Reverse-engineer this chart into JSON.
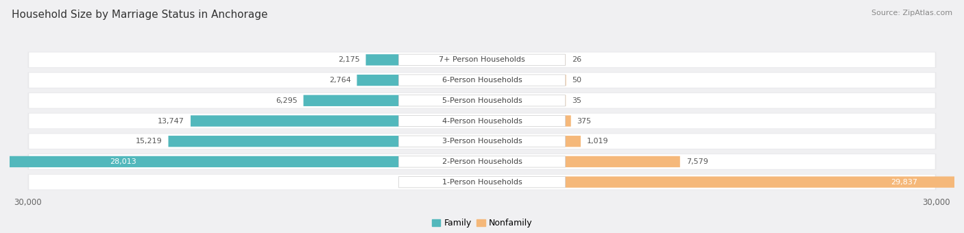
{
  "title": "Household Size by Marriage Status in Anchorage",
  "source": "Source: ZipAtlas.com",
  "categories": [
    "7+ Person Households",
    "6-Person Households",
    "5-Person Households",
    "4-Person Households",
    "3-Person Households",
    "2-Person Households",
    "1-Person Households"
  ],
  "family_values": [
    2175,
    2764,
    6295,
    13747,
    15219,
    28013,
    0
  ],
  "nonfamily_values": [
    26,
    50,
    35,
    375,
    1019,
    7579,
    29837
  ],
  "family_color": "#52b8bc",
  "nonfamily_color": "#f5b87a",
  "row_bg_color": "#ffffff",
  "outer_bg_color": "#e8e8eb",
  "fig_bg_color": "#f0f0f2",
  "max_value": 30000,
  "title_fontsize": 11,
  "source_fontsize": 8,
  "axis_label_fontsize": 8.5,
  "bar_label_fontsize": 8,
  "category_fontsize": 8
}
